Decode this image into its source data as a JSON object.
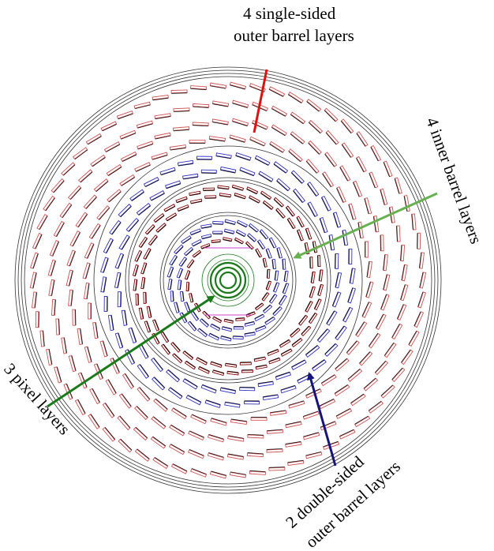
{
  "labels": {
    "single_sided_line1": "4 single-sided",
    "single_sided_line2": "outer barrel layers",
    "inner_line1": "4 inner barrel layers",
    "pixel": "3 pixel layers",
    "double_sided_line1": "2 double-sided",
    "double_sided_line2": "outer barrel layers"
  },
  "colors": {
    "single_sided_arrow": "#e01010",
    "inner_arrow": "#66b050",
    "pixel_arrow": "#1a7a1a",
    "double_sided_arrow": "#14147a",
    "outer_modules": "#d05050",
    "double_sided_modules": "#3030c0",
    "inner_modules": "#800000",
    "pixel_modules": "#1a7a1a",
    "support_rings": "#333333"
  },
  "layers": {
    "pixel_count": 3,
    "inner_barrel_count": 4,
    "double_sided_outer_count": 2,
    "single_sided_outer_count": 4
  }
}
